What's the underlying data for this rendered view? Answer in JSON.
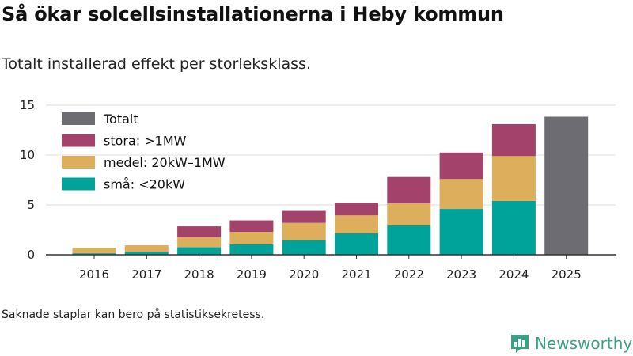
{
  "title": "Så ökar solcellsinstallationerna i Heby kommun",
  "subtitle": "Totalt installerad effekt per storleksklass.",
  "note": "Saknade staplar kan bero på statistiksekretess.",
  "brand": {
    "name": "Newsworthy",
    "color": "#3f9f86",
    "icon": "newsworthy-logo-icon"
  },
  "chart_data": {
    "type": "bar",
    "stacked": true,
    "categories": [
      "2016",
      "2017",
      "2018",
      "2019",
      "2020",
      "2021",
      "2022",
      "2023",
      "2024",
      "2025"
    ],
    "series": [
      {
        "name": "små: <20kW",
        "color": "#00a39a",
        "values": [
          0.15,
          0.3,
          0.75,
          1.05,
          1.45,
          2.15,
          2.95,
          4.6,
          5.4,
          null
        ]
      },
      {
        "name": "medel: 20kW–1MW",
        "color": "#ddaf5d",
        "values": [
          0.55,
          0.65,
          1.0,
          1.25,
          1.75,
          1.8,
          2.2,
          3.0,
          4.5,
          null
        ]
      },
      {
        "name": "stora: >1MW",
        "color": "#a3426a",
        "values": [
          0.0,
          0.0,
          1.1,
          1.15,
          1.2,
          1.25,
          2.65,
          2.65,
          3.2,
          null
        ]
      },
      {
        "name": "Totalt",
        "color": "#6c6c72",
        "values": [
          null,
          null,
          null,
          null,
          null,
          null,
          null,
          null,
          null,
          13.85
        ]
      }
    ],
    "legend_order": [
      "Totalt",
      "stora: >1MW",
      "medel: 20kW–1MW",
      "små: <20kW"
    ],
    "legend_position": "top-left",
    "y_ticks": [
      0,
      5,
      10,
      15
    ],
    "ylim": [
      0,
      15
    ],
    "xlabel": "",
    "ylabel": "",
    "grid": true
  }
}
